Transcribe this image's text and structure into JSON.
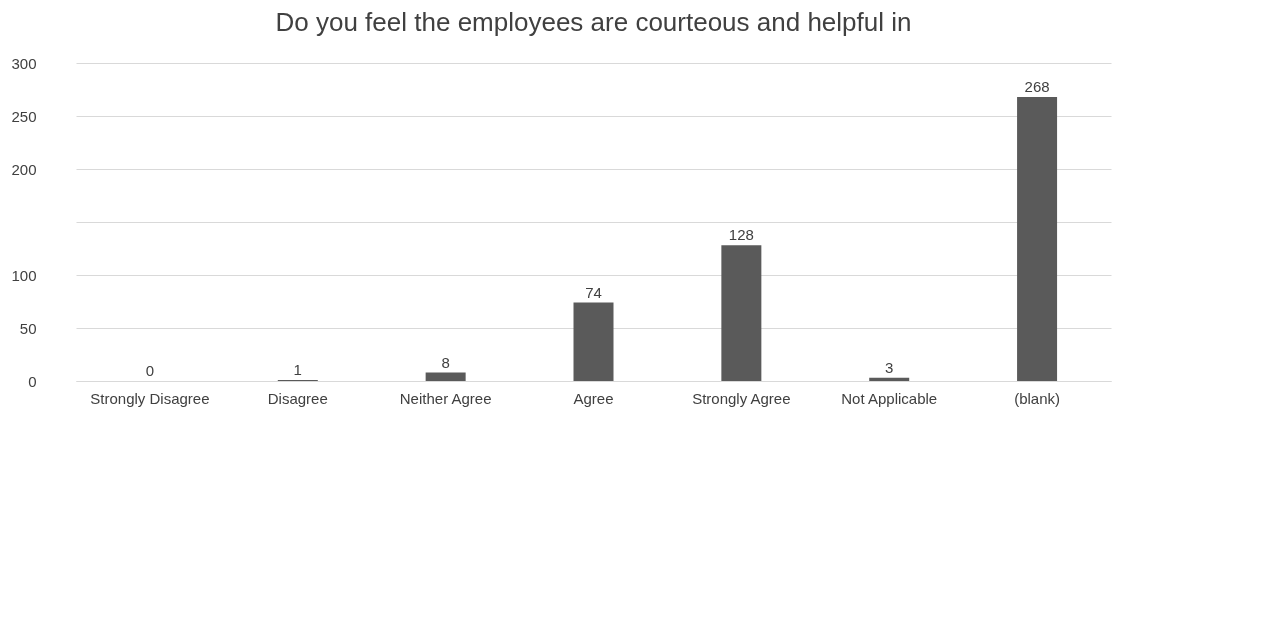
{
  "chart_data": {
    "type": "bar",
    "title": "Do you feel the employees are courteous and helpful in",
    "categories": [
      "Strongly Disagree",
      "Disagree",
      "Neither Agree",
      "Agree",
      "Strongly Agree",
      "Not Applicable",
      "(blank)"
    ],
    "values": [
      0,
      1,
      8,
      74,
      128,
      3,
      268
    ],
    "color": "#5a5a5a",
    "ylim": [
      0,
      300
    ],
    "yticks": [
      0,
      50,
      100,
      {
        "value": 150,
        "label": null
      },
      200,
      250,
      300
    ],
    "grid": "y",
    "data_labels": true
  }
}
